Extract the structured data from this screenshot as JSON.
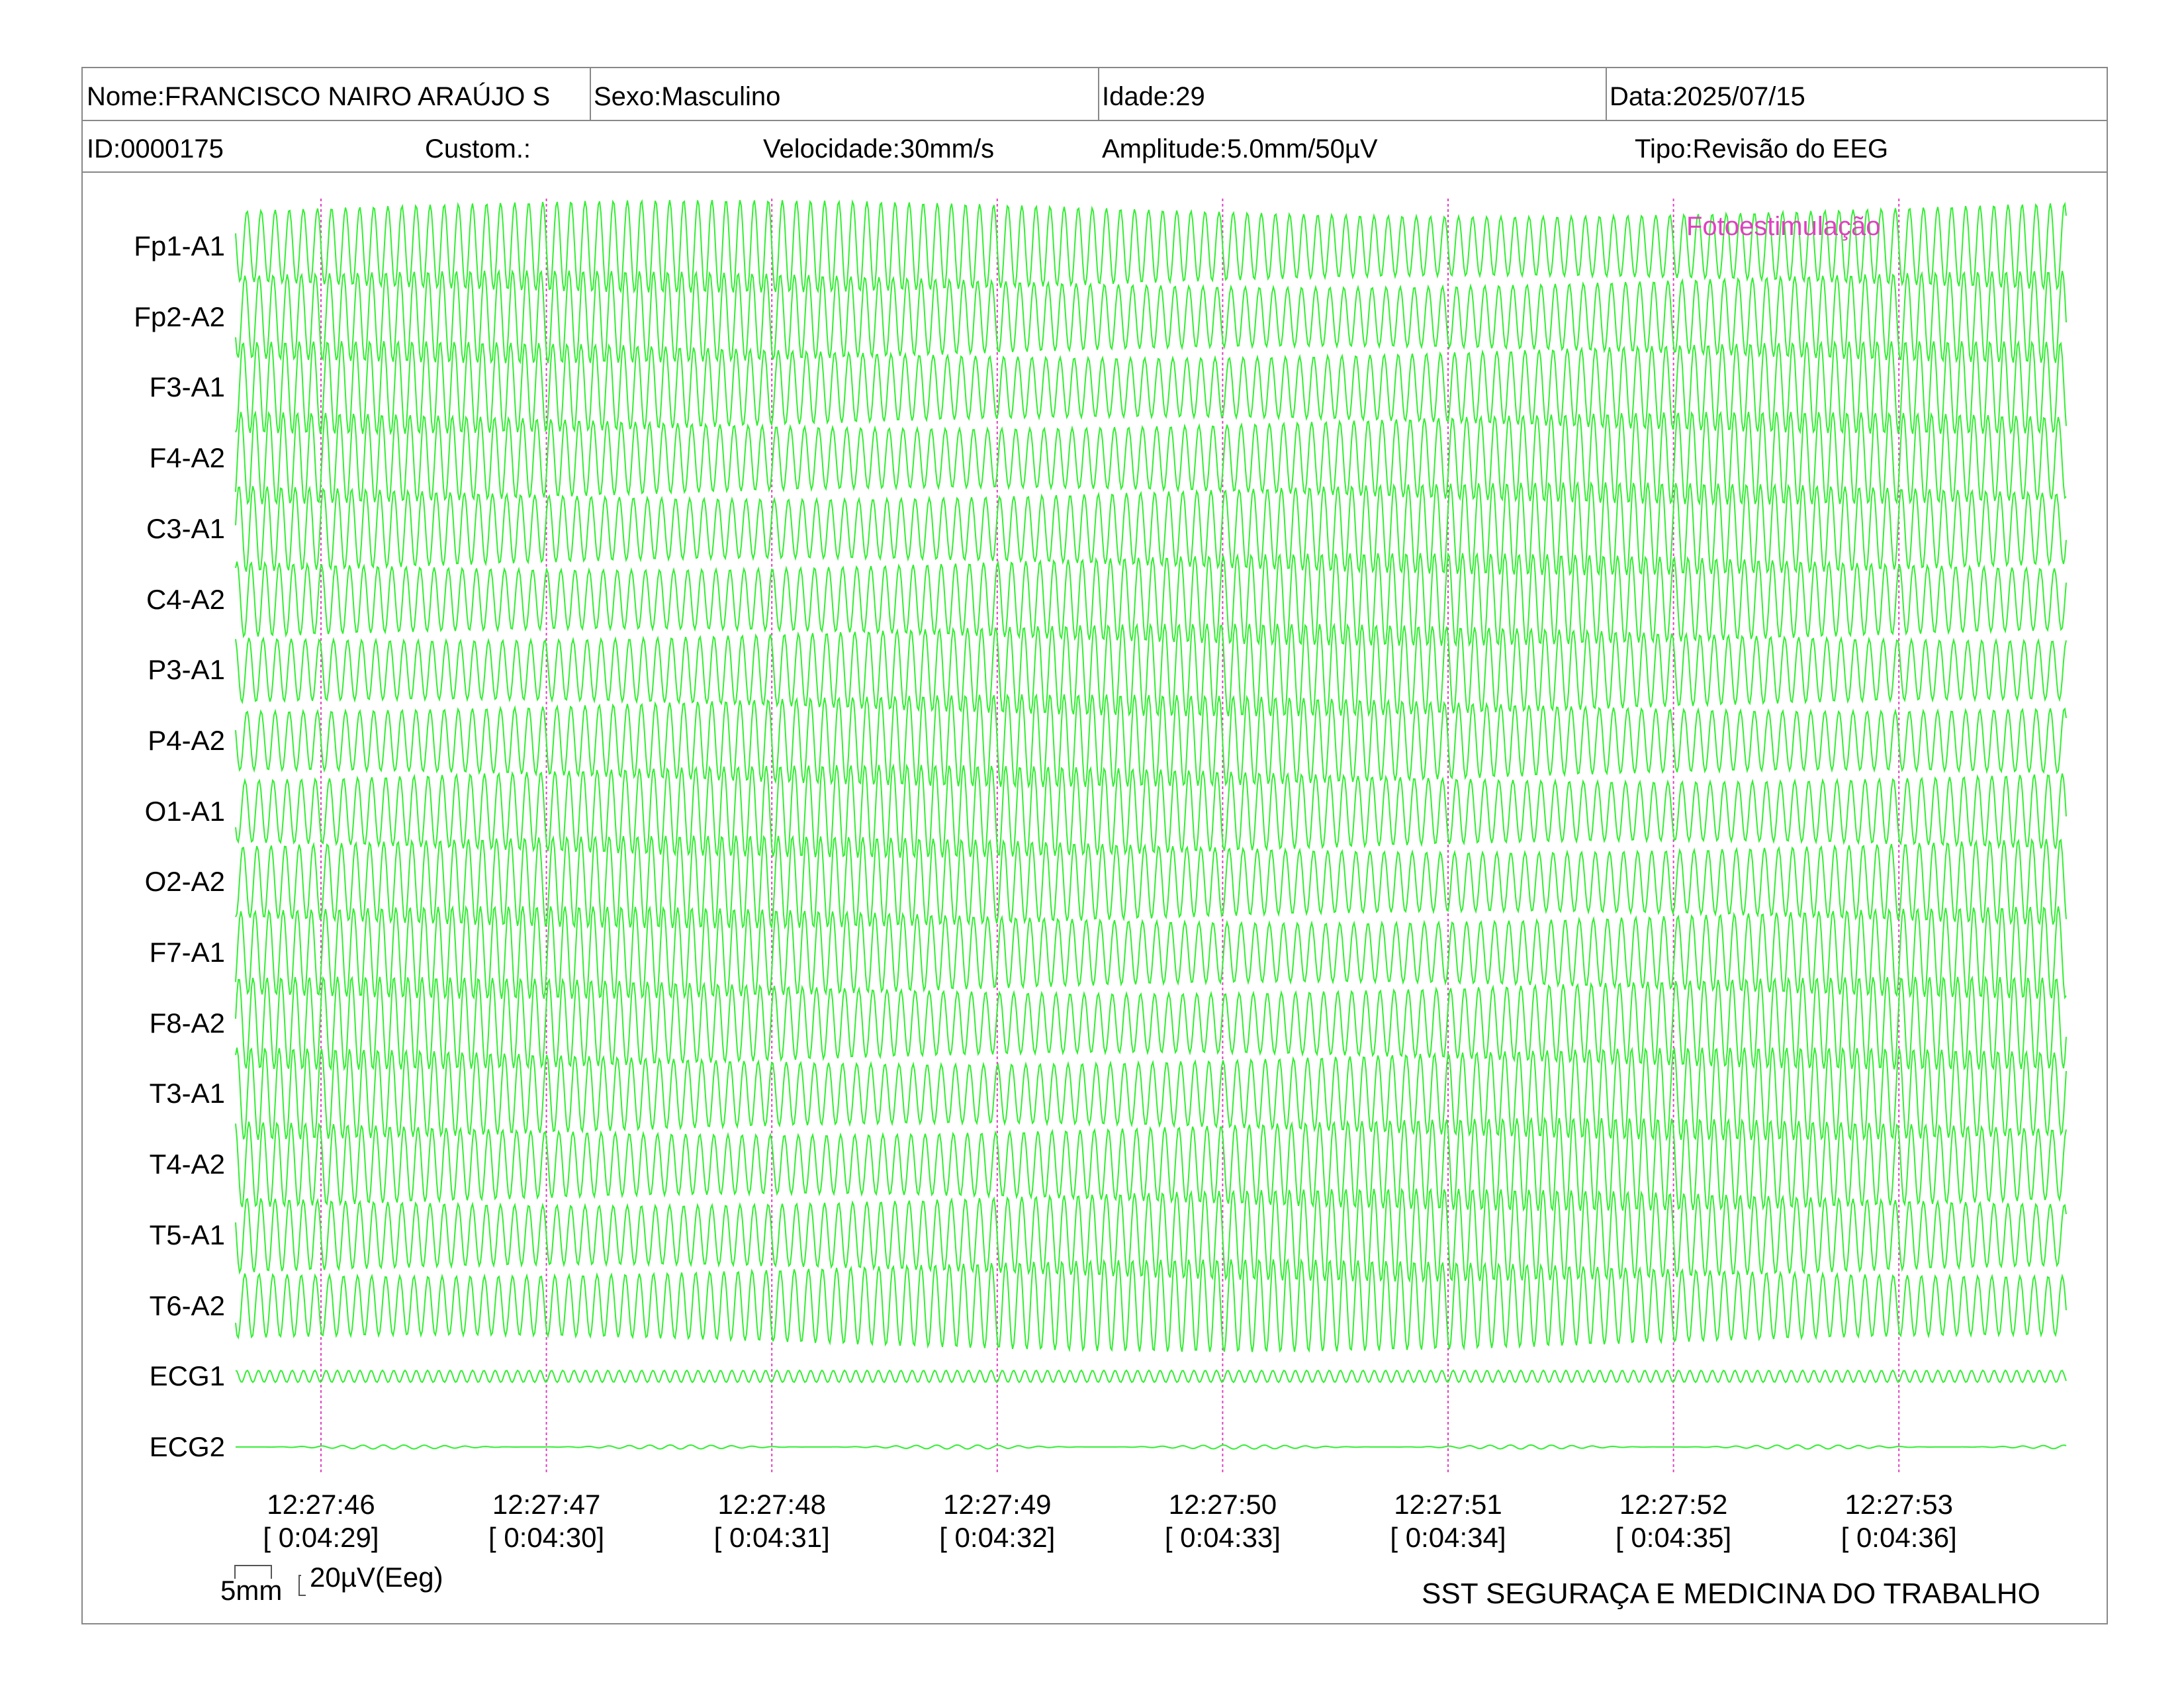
{
  "header": {
    "nome": "Nome:FRANCISCO NAIRO ARAÚJO S",
    "sexo": "Sexo:Masculino",
    "idade": "Idade:29",
    "data": "Data:2025/07/15",
    "id": "ID:0000175",
    "custom": "Custom.:",
    "velocidade": "Velocidade:30mm/s",
    "amplitude": "Amplitude:5.0mm/50µV",
    "tipo": "Tipo:Revisão do EEG"
  },
  "annotation": "Fotoestimulação",
  "scale": {
    "mm": "5mm",
    "uv": "20µV(Eeg)"
  },
  "footer": "SST SEGURAÇA E MEDICINA DO TRABALHO",
  "colors": {
    "trace": "#33ee33",
    "marker": "#e040c0",
    "border": "#888888"
  },
  "chart_data": {
    "type": "line",
    "title": "",
    "channels": [
      "Fp1-A1",
      "Fp2-A2",
      "F3-A1",
      "F4-A2",
      "C3-A1",
      "C4-A2",
      "P3-A1",
      "P4-A2",
      "O1-A1",
      "O2-A2",
      "F7-A1",
      "F8-A2",
      "T3-A1",
      "T4-A2",
      "T5-A1",
      "T6-A2",
      "ECG1",
      "ECG2"
    ],
    "x_ticks": [
      {
        "time": "12:27:46",
        "elapsed": "[ 0:04:29]"
      },
      {
        "time": "12:27:47",
        "elapsed": "[ 0:04:30]"
      },
      {
        "time": "12:27:48",
        "elapsed": "[ 0:04:31]"
      },
      {
        "time": "12:27:49",
        "elapsed": "[ 0:04:32]"
      },
      {
        "time": "12:27:50",
        "elapsed": "[ 0:04:33]"
      },
      {
        "time": "12:27:51",
        "elapsed": "[ 0:04:34]"
      },
      {
        "time": "12:27:52",
        "elapsed": "[ 0:04:35]"
      },
      {
        "time": "12:27:53",
        "elapsed": "[ 0:04:36]"
      }
    ],
    "x_range_s": [
      0,
      8.1
    ],
    "eeg_frequency_hz": 16,
    "ecg1_frequency_hz": 20,
    "grid": "dotted vertical markers at each second"
  }
}
